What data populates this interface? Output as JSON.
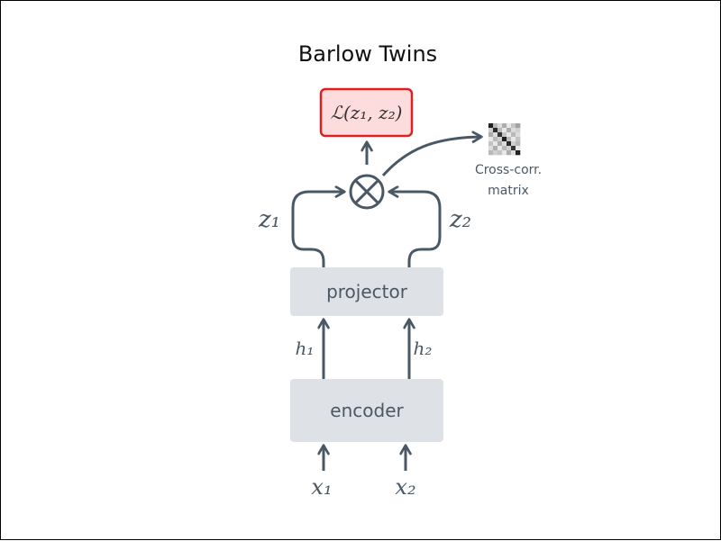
{
  "title": "Barlow Twins",
  "loss": {
    "label": "ℒ(z₁, z₂)",
    "fill": "#fcdcdc",
    "stroke": "#e02020"
  },
  "operator": {
    "symbol": "⊗"
  },
  "matrix": {
    "caption_line1": "Cross-corr.",
    "caption_line2": "matrix",
    "cells": [
      [
        0.95,
        0.3,
        0.15,
        0.35,
        0.1,
        0.25,
        0.4
      ],
      [
        0.2,
        0.9,
        0.3,
        0.1,
        0.35,
        0.15,
        0.2
      ],
      [
        0.35,
        0.15,
        0.85,
        0.25,
        0.1,
        0.3,
        0.15
      ],
      [
        0.1,
        0.3,
        0.2,
        0.95,
        0.3,
        0.1,
        0.25
      ],
      [
        0.25,
        0.1,
        0.35,
        0.15,
        0.9,
        0.2,
        0.3
      ],
      [
        0.15,
        0.35,
        0.1,
        0.3,
        0.2,
        0.85,
        0.1
      ],
      [
        0.3,
        0.2,
        0.25,
        0.1,
        0.35,
        0.15,
        0.95
      ]
    ]
  },
  "branches": {
    "z1": "z₁",
    "z2": "z₂",
    "h1": "h₁",
    "h2": "h₂",
    "x1": "x₁",
    "x2": "x₂"
  },
  "blocks": {
    "projector": "projector",
    "encoder": "encoder",
    "fill": "#dee2e7",
    "text_color": "#4a5866"
  },
  "colors": {
    "arrow": "#4a5866",
    "title": "#111111",
    "caption": "#4a5866"
  }
}
